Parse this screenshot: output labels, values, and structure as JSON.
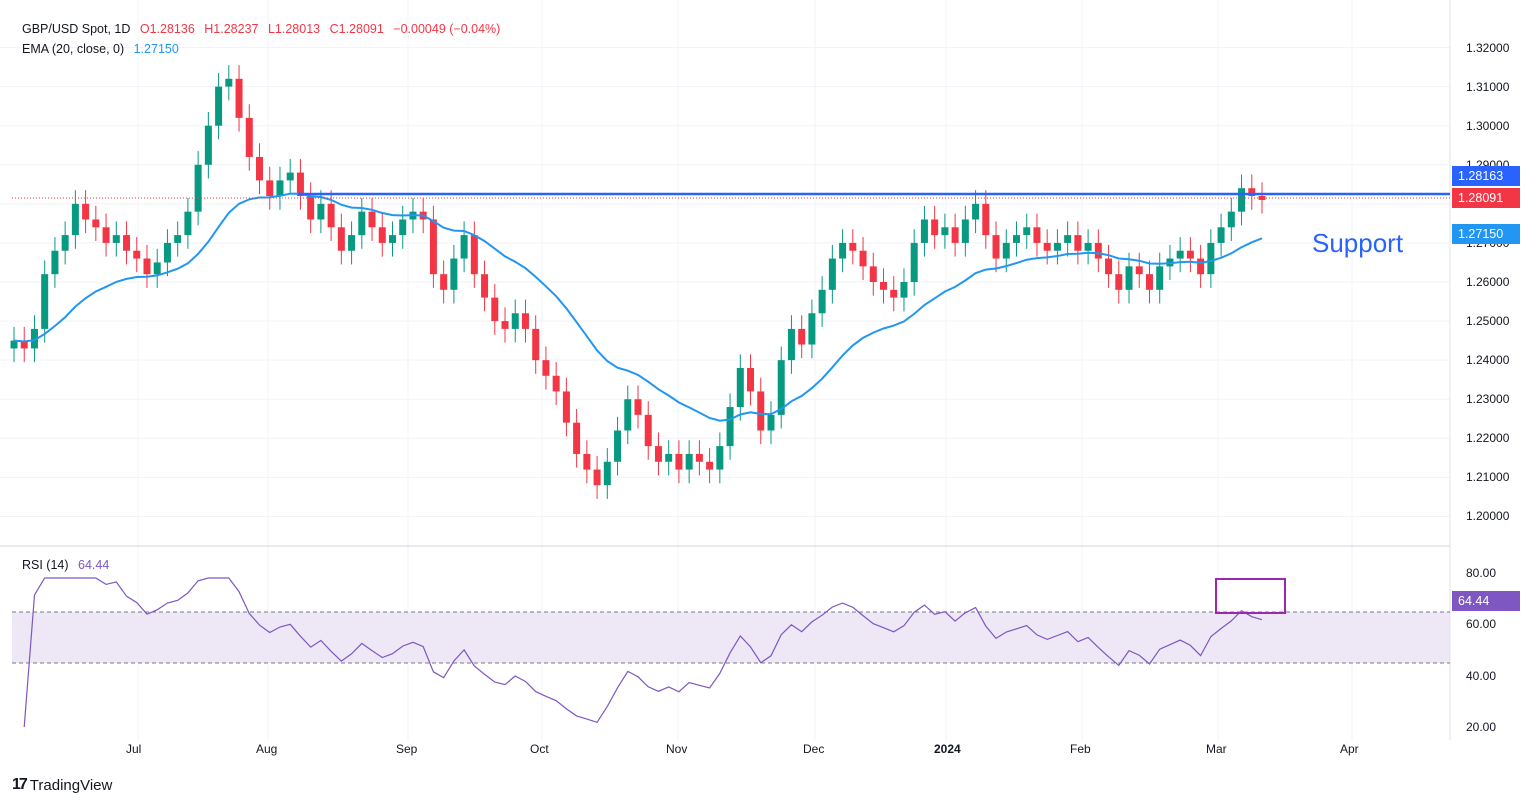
{
  "header": {
    "symbol": "GBP/USD Spot, 1D",
    "open": "O1.28136",
    "high": "H1.28237",
    "low": "L1.28013",
    "close": "C1.28091",
    "change": "−0.00049 (−0.04%)",
    "ema_label": "EMA (20, close, 0)",
    "ema_value": "1.27150",
    "rsi_label": "RSI (14)",
    "rsi_value": "64.44"
  },
  "badges": {
    "support_price": "1.28163",
    "last_price": "1.28091",
    "ema_price": "1.27150",
    "rsi": "64.44"
  },
  "annotation": {
    "support": "Support"
  },
  "brand": {
    "name": "TradingView"
  },
  "colors": {
    "up": "#089981",
    "down": "#f23645",
    "ema": "#2196f3",
    "support": "#2962ff",
    "rsi": "#7e57c2",
    "rsi_band": "#ede7f6"
  },
  "chart_data": [
    {
      "type": "candlestick",
      "title": "GBP/USD Spot, 1D",
      "y_ticks": [
        "1.32000",
        "1.31000",
        "1.30000",
        "1.29000",
        "1.28000",
        "1.27000",
        "1.26000",
        "1.25000",
        "1.24000",
        "1.23000",
        "1.22000",
        "1.21000",
        "1.20000"
      ],
      "ylim": [
        1.195,
        1.325
      ],
      "x_ticks": [
        "Jul",
        "Aug",
        "Sep",
        "Oct",
        "Nov",
        "Dec",
        "2024",
        "Feb",
        "Mar",
        "Apr"
      ],
      "support_level": 1.28163,
      "ema20_last": 1.2715,
      "close_series": [
        1.245,
        1.243,
        1.248,
        1.262,
        1.268,
        1.272,
        1.28,
        1.276,
        1.274,
        1.27,
        1.272,
        1.268,
        1.266,
        1.262,
        1.265,
        1.27,
        1.272,
        1.278,
        1.29,
        1.3,
        1.31,
        1.312,
        1.302,
        1.292,
        1.286,
        1.282,
        1.286,
        1.288,
        1.282,
        1.276,
        1.28,
        1.274,
        1.268,
        1.272,
        1.278,
        1.274,
        1.27,
        1.272,
        1.276,
        1.278,
        1.276,
        1.262,
        1.258,
        1.266,
        1.272,
        1.262,
        1.256,
        1.25,
        1.248,
        1.252,
        1.248,
        1.24,
        1.236,
        1.232,
        1.224,
        1.216,
        1.212,
        1.208,
        1.214,
        1.222,
        1.23,
        1.226,
        1.218,
        1.214,
        1.216,
        1.212,
        1.216,
        1.214,
        1.212,
        1.218,
        1.228,
        1.238,
        1.232,
        1.222,
        1.226,
        1.24,
        1.248,
        1.244,
        1.252,
        1.258,
        1.266,
        1.27,
        1.268,
        1.264,
        1.26,
        1.258,
        1.256,
        1.26,
        1.27,
        1.276,
        1.272,
        1.274,
        1.27,
        1.276,
        1.28,
        1.272,
        1.266,
        1.27,
        1.272,
        1.274,
        1.27,
        1.268,
        1.27,
        1.272,
        1.268,
        1.27,
        1.266,
        1.262,
        1.258,
        1.264,
        1.262,
        1.258,
        1.264,
        1.266,
        1.268,
        1.266,
        1.262,
        1.27,
        1.274,
        1.278,
        1.284,
        1.282,
        1.281
      ]
    },
    {
      "type": "line",
      "title": "RSI (14)",
      "y_ticks": [
        "80.00",
        "60.00",
        "40.00",
        "20.00"
      ],
      "ylim": [
        15,
        85
      ],
      "bands": [
        40,
        60
      ],
      "last": 64.44
    }
  ]
}
